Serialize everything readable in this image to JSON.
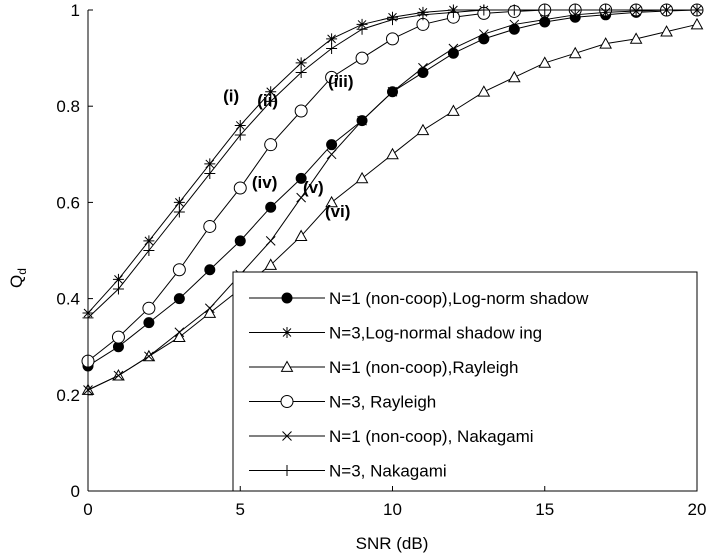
{
  "chart_data": {
    "type": "line",
    "xlabel": "SNR (dB)",
    "ylabel": "Q",
    "ylabel_sub": "d",
    "xlim": [
      0,
      20
    ],
    "ylim": [
      0,
      1
    ],
    "xticks": [
      "0",
      "5",
      "10",
      "15",
      "20"
    ],
    "yticks": [
      "0",
      "0.2",
      "0.4",
      "0.6",
      "0.8",
      "1"
    ],
    "grid": false,
    "legend_position": "bottom-right",
    "x": [
      0,
      1,
      2,
      3,
      4,
      5,
      6,
      7,
      8,
      9,
      10,
      11,
      12,
      13,
      14,
      15,
      16,
      17,
      18,
      19,
      20
    ],
    "series": [
      {
        "name": "N=1 (non-coop),Log-norm shadow",
        "marker": "dot",
        "values": [
          0.26,
          0.3,
          0.35,
          0.4,
          0.46,
          0.52,
          0.59,
          0.65,
          0.72,
          0.77,
          0.83,
          0.87,
          0.91,
          0.94,
          0.96,
          0.975,
          0.985,
          0.99,
          0.995,
          0.998,
          1.0
        ]
      },
      {
        "name": "N=3,Log-normal shadow ing",
        "marker": "star",
        "values": [
          0.37,
          0.44,
          0.52,
          0.6,
          0.68,
          0.76,
          0.83,
          0.89,
          0.94,
          0.97,
          0.985,
          0.995,
          1.0,
          1.0,
          1.0,
          1.0,
          1.0,
          1.0,
          1.0,
          1.0,
          1.0
        ]
      },
      {
        "name": "N=1 (non-coop),Rayleigh",
        "marker": "triangle",
        "values": [
          0.21,
          0.24,
          0.28,
          0.32,
          0.37,
          0.42,
          0.47,
          0.53,
          0.6,
          0.65,
          0.7,
          0.75,
          0.79,
          0.83,
          0.86,
          0.89,
          0.91,
          0.93,
          0.94,
          0.955,
          0.97
        ]
      },
      {
        "name": "N=3, Rayleigh",
        "marker": "circle",
        "values": [
          0.27,
          0.32,
          0.38,
          0.46,
          0.55,
          0.63,
          0.72,
          0.79,
          0.86,
          0.9,
          0.94,
          0.97,
          0.985,
          0.993,
          0.997,
          1.0,
          1.0,
          1.0,
          1.0,
          1.0,
          1.0
        ]
      },
      {
        "name": "N=1 (non-coop), Nakagami",
        "marker": "x",
        "values": [
          0.21,
          0.24,
          0.28,
          0.33,
          0.38,
          0.45,
          0.52,
          0.61,
          0.7,
          0.77,
          0.83,
          0.88,
          0.92,
          0.95,
          0.97,
          0.98,
          0.99,
          0.995,
          0.998,
          1.0,
          1.0
        ]
      },
      {
        "name": "N=3, Nakagami",
        "marker": "plus",
        "values": [
          0.36,
          0.42,
          0.5,
          0.58,
          0.66,
          0.74,
          0.81,
          0.87,
          0.92,
          0.96,
          0.98,
          0.99,
          0.995,
          1.0,
          1.0,
          1.0,
          1.0,
          1.0,
          1.0,
          1.0,
          1.0
        ]
      }
    ],
    "annotations": [
      {
        "text": "(i)",
        "x": 4.7,
        "y": 0.81
      },
      {
        "text": "(ii)",
        "x": 5.9,
        "y": 0.8
      },
      {
        "text": "(iii)",
        "x": 8.3,
        "y": 0.84
      },
      {
        "text": "(iv)",
        "x": 5.8,
        "y": 0.63
      },
      {
        "text": "(v)",
        "x": 7.4,
        "y": 0.62
      },
      {
        "text": "(vi)",
        "x": 8.2,
        "y": 0.57
      }
    ]
  }
}
